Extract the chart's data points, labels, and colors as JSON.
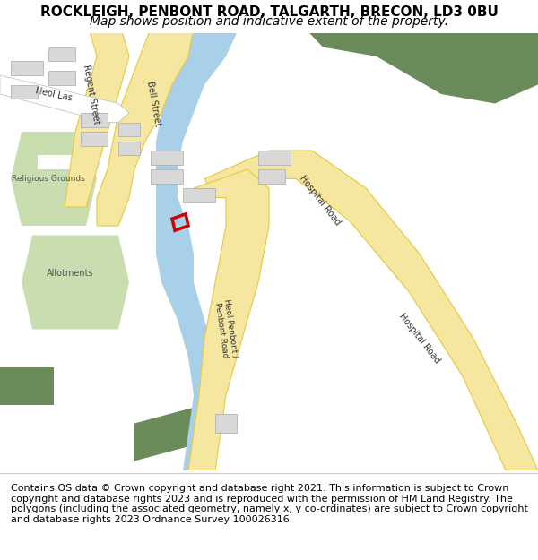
{
  "title": "ROCKLEIGH, PENBONT ROAD, TALGARTH, BRECON, LD3 0BU",
  "subtitle": "Map shows position and indicative extent of the property.",
  "footer": "Contains OS data © Crown copyright and database right 2021. This information is subject to Crown copyright and database rights 2023 and is reproduced with the permission of HM Land Registry. The polygons (including the associated geometry, namely x, y co-ordinates) are subject to Crown copyright and database rights 2023 Ordnance Survey 100026316.",
  "bg_color": "#f8f8f8",
  "map_bg": "#ffffff",
  "road_yellow": "#f5e6a0",
  "road_yellow_dark": "#e8c840",
  "road_white": "#e8e8e8",
  "river_blue": "#a8d0e8",
  "green_area": "#c8ddb0",
  "dark_green": "#6b8c5a",
  "building_gray": "#d8d8d8",
  "plot_color": "#cc0000",
  "text_color": "#333333",
  "title_fontsize": 11,
  "subtitle_fontsize": 10,
  "footer_fontsize": 8
}
